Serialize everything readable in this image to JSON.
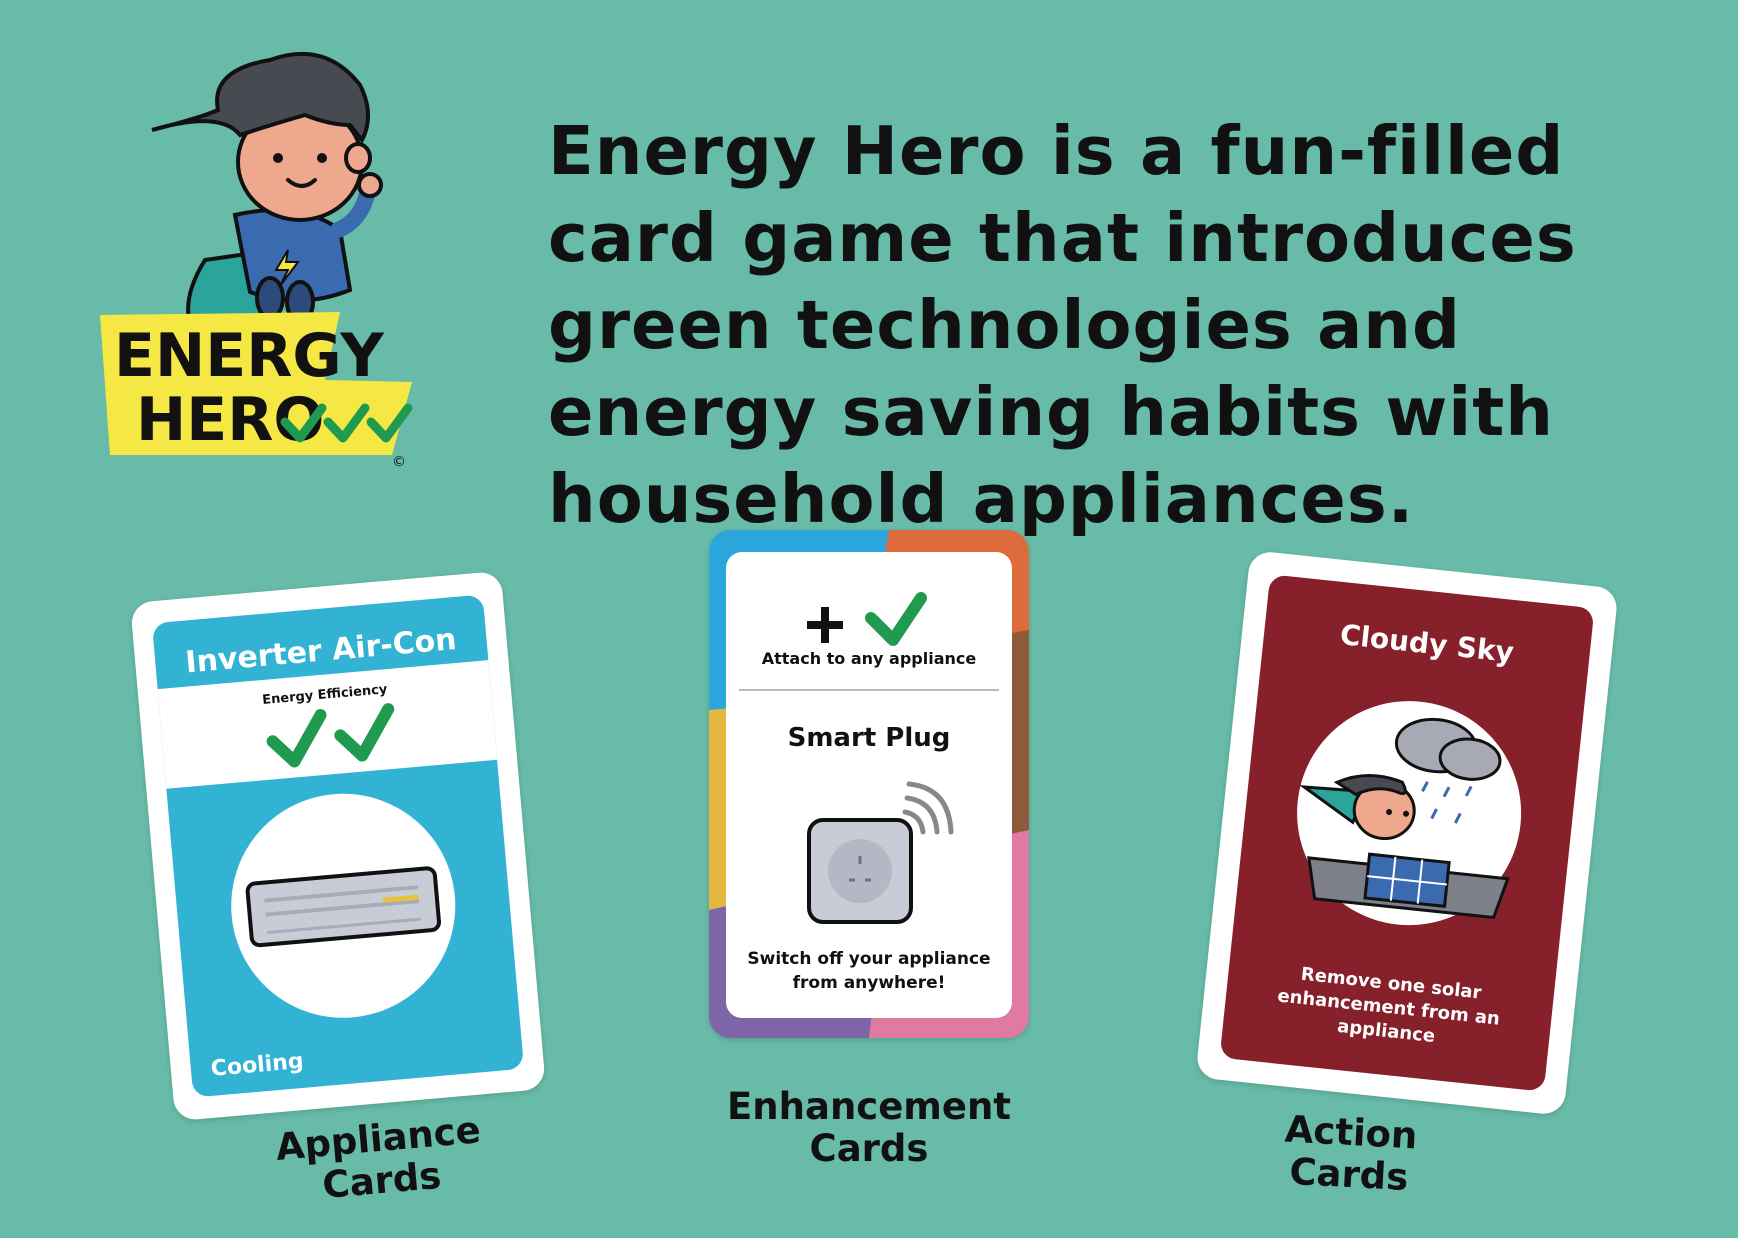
{
  "intro_text": "Energy Hero is a fun-filled card game that introduces green technologies and energy saving habits with household appliances.",
  "logo": {
    "line1": "ENERGY",
    "line2": "HERO",
    "copyright": "©"
  },
  "cards": {
    "appliance": {
      "title": "Inverter Air-Con",
      "efficiency_label": "Energy Efficiency",
      "category": "Cooling",
      "caption_line1": "Appliance",
      "caption_line2": "Cards"
    },
    "enhancement": {
      "attach_text": "Attach to any appliance",
      "title": "Smart Plug",
      "desc_line1": "Switch off your appliance",
      "desc_line2": "from anywhere!",
      "caption_line1": "Enhancement",
      "caption_line2": "Cards"
    },
    "action": {
      "title": "Cloudy Sky",
      "desc_line1": "Remove one solar",
      "desc_line2": "enhancement from an",
      "desc_line3": "appliance",
      "caption_line1": "Action",
      "caption_line2": "Cards"
    }
  },
  "colors": {
    "background": "#67bba8",
    "appliance_blue": "#33b3d4",
    "action_red": "#86202a",
    "check_green": "#1f9a4e",
    "logo_yellow": "#f6e844"
  }
}
